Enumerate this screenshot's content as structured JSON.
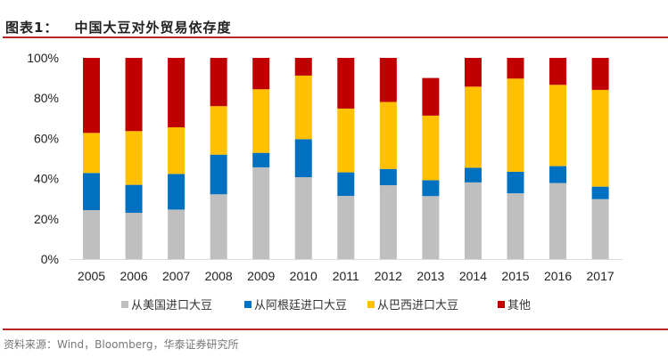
{
  "header": {
    "label": "图表1：",
    "title": "中国大豆对外贸易依存度"
  },
  "source": "资料来源：Wind，Bloomberg，华泰证券研究所",
  "chart_data": {
    "type": "bar",
    "stacked": true,
    "percent": true,
    "title": "中国大豆对外贸易依存度",
    "categories": [
      "2005",
      "2006",
      "2007",
      "2008",
      "2009",
      "2010",
      "2011",
      "2012",
      "2013",
      "2014",
      "2015",
      "2016",
      "2017"
    ],
    "ylim": [
      0,
      100
    ],
    "yticks": [
      "0%",
      "20%",
      "40%",
      "60%",
      "80%",
      "100%"
    ],
    "grid": false,
    "legend_position": "bottom",
    "series": [
      {
        "name": "从美国进口大豆",
        "color": "#bfbfbf",
        "values": [
          24.3,
          23.0,
          24.6,
          32.2,
          45.6,
          40.7,
          31.4,
          36.7,
          31.3,
          38.1,
          32.7,
          37.8,
          29.8
        ]
      },
      {
        "name": "从阿根廷进口大豆",
        "color": "#0070c0",
        "values": [
          18.5,
          13.9,
          17.7,
          19.7,
          7.2,
          18.9,
          11.7,
          8.1,
          7.9,
          7.3,
          10.7,
          8.4,
          6.2
        ]
      },
      {
        "name": "从巴西进口大豆",
        "color": "#ffc000",
        "values": [
          19.9,
          26.7,
          23.2,
          24.1,
          31.6,
          31.6,
          31.7,
          33.3,
          32.1,
          40.3,
          46.3,
          40.4,
          48.1
        ]
      },
      {
        "name": "其他",
        "color": "#c00000",
        "values": [
          37.3,
          36.4,
          34.5,
          24.0,
          15.6,
          8.8,
          25.2,
          21.9,
          18.7,
          14.3,
          10.3,
          13.4,
          15.9
        ]
      }
    ]
  }
}
